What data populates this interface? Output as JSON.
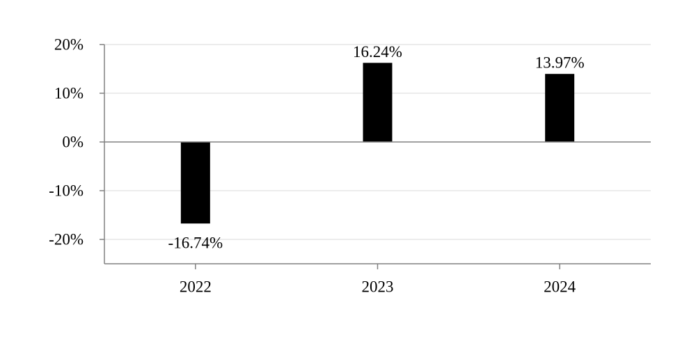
{
  "chart_data": {
    "type": "bar",
    "categories": [
      "2022",
      "2023",
      "2024"
    ],
    "values": [
      -16.74,
      16.24,
      13.97
    ],
    "value_labels": [
      "-16.74%",
      "16.24%",
      "13.97%"
    ],
    "ylim": [
      -25,
      20
    ],
    "yticks": [
      20,
      10,
      0,
      -10,
      -20
    ],
    "ytick_labels": [
      "20%",
      "10%",
      "0%",
      "-10%",
      "-20%"
    ],
    "title": "",
    "xlabel": "",
    "ylabel": "",
    "grid": true,
    "legend": "none",
    "bar_color": "#000000",
    "grid_color": "#e6e6e6",
    "axis_color": "#808080"
  }
}
